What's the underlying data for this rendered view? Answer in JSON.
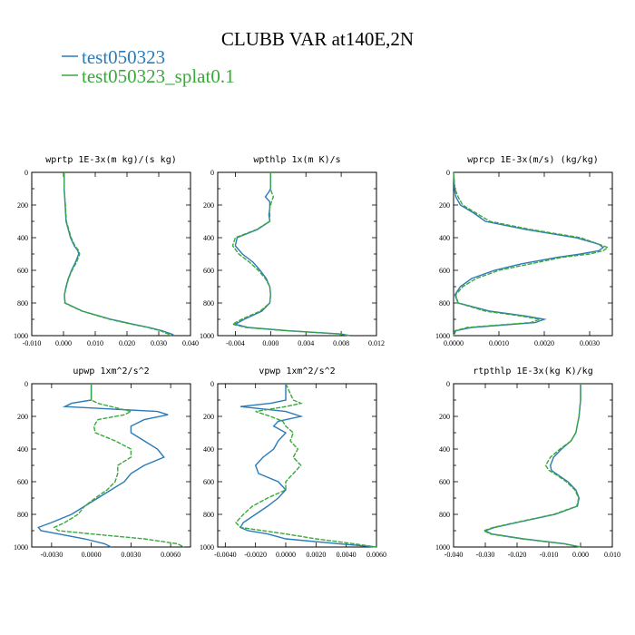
{
  "figure_title": "CLUBB VAR at140E,2N",
  "colors": {
    "series1": "#2b7bb9",
    "series2": "#3aa83a",
    "frame": "#000000"
  },
  "chart_data": [
    {
      "type": "line",
      "title": "wprtp  1E-3x(m kg)/(s kg)",
      "xlim": [
        -0.01,
        0.04
      ],
      "ylim": [
        1000,
        0
      ],
      "xticks": [
        "-0.010",
        "0.000",
        "0.010",
        "0.020",
        "0.030",
        "0.040"
      ],
      "xtick_values": [
        -0.01,
        0.0,
        0.01,
        0.02,
        0.03,
        0.04
      ],
      "yticks": [
        "0",
        "200",
        "400",
        "600",
        "800",
        "1000"
      ],
      "ytick_values": [
        0,
        200,
        400,
        600,
        800,
        1000
      ],
      "y": [
        0,
        100,
        200,
        300,
        400,
        450,
        480,
        500,
        550,
        600,
        650,
        700,
        750,
        800,
        850,
        900,
        930,
        950,
        970,
        990,
        1000
      ],
      "series": [
        {
          "name": "test050323",
          "values": [
            0.0002,
            0.0002,
            0.0005,
            0.0008,
            0.0022,
            0.0034,
            0.0045,
            0.0048,
            0.0038,
            0.0025,
            0.0015,
            0.0008,
            0.0003,
            0.0005,
            0.006,
            0.015,
            0.022,
            0.027,
            0.031,
            0.034,
            0.035
          ]
        },
        {
          "name": "test050323_splat0.1",
          "values": [
            0.0002,
            0.0002,
            0.0006,
            0.0009,
            0.0024,
            0.0036,
            0.0048,
            0.0051,
            0.0041,
            0.0027,
            0.0016,
            0.0009,
            0.0003,
            0.0004,
            0.0058,
            0.0145,
            0.0215,
            0.0265,
            0.0305,
            0.033,
            0.034
          ]
        }
      ]
    },
    {
      "type": "line",
      "title": "wpthlp  1x(m K)/s",
      "xlim": [
        -0.006,
        0.012
      ],
      "ylim": [
        1000,
        0
      ],
      "xticks": [
        "-0.004",
        "0.000",
        "0.004",
        "0.008",
        "0.012"
      ],
      "xtick_values": [
        -0.004,
        0.0,
        0.004,
        0.008,
        0.012
      ],
      "yticks": [
        "0",
        "200",
        "400",
        "600",
        "800",
        "1000"
      ],
      "ytick_values": [
        0,
        200,
        400,
        600,
        800,
        1000
      ],
      "y": [
        0,
        100,
        120,
        150,
        180,
        220,
        260,
        300,
        350,
        400,
        450,
        500,
        550,
        600,
        650,
        700,
        750,
        800,
        850,
        900,
        930,
        950,
        970,
        990,
        1000
      ],
      "series": [
        {
          "name": "test050323",
          "values": [
            0.0,
            0.0,
            -0.0002,
            -0.0006,
            -0.0001,
            -0.0001,
            -0.0002,
            -0.0001,
            -0.0015,
            -0.0038,
            -0.004,
            -0.0032,
            -0.002,
            -0.0012,
            -0.0005,
            -0.0001,
            0.0,
            -0.0001,
            -0.001,
            -0.003,
            -0.004,
            -0.0025,
            0.002,
            0.008,
            0.009
          ]
        },
        {
          "name": "test050323_splat0.1",
          "values": [
            0.0,
            0.0,
            0.0001,
            0.0003,
            0.0001,
            -0.0001,
            -0.0001,
            -0.0001,
            -0.0016,
            -0.004,
            -0.0043,
            -0.0036,
            -0.0024,
            -0.0014,
            -0.0006,
            -0.0001,
            0.0,
            -0.0001,
            -0.0012,
            -0.0033,
            -0.0043,
            -0.0028,
            0.0018,
            0.0078,
            0.009
          ]
        }
      ]
    },
    {
      "type": "line",
      "title": "wprcp  1E-3x(m/s) (kg/kg)",
      "xlim": [
        0.0,
        0.0035
      ],
      "ylim": [
        1000,
        0
      ],
      "xticks": [
        "0.0000",
        "0.0010",
        "0.0020",
        "0.0030"
      ],
      "xtick_values": [
        0.0,
        0.001,
        0.002,
        0.003
      ],
      "yticks": [
        "0",
        "200",
        "400",
        "600",
        "800",
        "1000"
      ],
      "ytick_values": [
        0,
        200,
        400,
        600,
        800,
        1000
      ],
      "y": [
        0,
        100,
        150,
        200,
        250,
        300,
        350,
        400,
        440,
        460,
        480,
        500,
        520,
        560,
        600,
        650,
        700,
        750,
        800,
        850,
        880,
        900,
        920,
        950,
        970,
        1000
      ],
      "series": [
        {
          "name": "test050323",
          "values": [
            0.0,
            2e-05,
            5e-05,
            0.00015,
            0.00045,
            0.0007,
            0.0016,
            0.0027,
            0.0032,
            0.0033,
            0.0032,
            0.0028,
            0.0023,
            0.0015,
            0.0009,
            0.0004,
            0.00015,
            3e-05,
            0.0001,
            0.0008,
            0.0016,
            0.002,
            0.0018,
            0.0004,
            5e-05,
            0.0
          ]
        },
        {
          "name": "test050323_splat0.1",
          "values": [
            0.0,
            3e-05,
            0.0001,
            0.0002,
            0.0005,
            0.0008,
            0.0017,
            0.0028,
            0.0032,
            0.0034,
            0.0033,
            0.003,
            0.0024,
            0.0017,
            0.001,
            0.0005,
            0.0002,
            5e-05,
            0.0001,
            0.0007,
            0.0015,
            0.0019,
            0.0017,
            0.0003,
            3e-05,
            0.0
          ]
        }
      ]
    },
    {
      "type": "line",
      "title": "upwp  1xm^2/s^2",
      "xlim": [
        -0.0045,
        0.0075
      ],
      "ylim": [
        1000,
        0
      ],
      "xticks": [
        "-0.0030",
        "0.0000",
        "0.0030",
        "0.0060"
      ],
      "xtick_values": [
        -0.003,
        0.0,
        0.003,
        0.006
      ],
      "yticks": [
        "0",
        "200",
        "400",
        "600",
        "800",
        "1000"
      ],
      "ytick_values": [
        0,
        200,
        400,
        600,
        800,
        1000
      ],
      "y": [
        0,
        100,
        120,
        140,
        170,
        190,
        220,
        260,
        300,
        350,
        400,
        450,
        500,
        550,
        600,
        650,
        700,
        750,
        800,
        850,
        880,
        900,
        920,
        950,
        980,
        1000
      ],
      "series": [
        {
          "name": "test050323",
          "values": [
            0.0,
            0.0,
            -0.0015,
            -0.002,
            0.005,
            0.0058,
            0.004,
            0.003,
            0.003,
            0.004,
            0.005,
            0.0055,
            0.004,
            0.003,
            0.0025,
            0.0015,
            0.0005,
            -0.0005,
            -0.0015,
            -0.003,
            -0.004,
            -0.0038,
            -0.0025,
            -0.0005,
            0.001,
            0.0015
          ]
        },
        {
          "name": "test050323_splat0.1",
          "values": [
            0.0,
            0.0,
            0.0005,
            0.0015,
            0.003,
            0.0025,
            0.0005,
            0.0002,
            0.0003,
            0.0018,
            0.003,
            0.003,
            0.002,
            0.002,
            0.0018,
            0.0012,
            0.0003,
            -0.0005,
            -0.001,
            -0.002,
            -0.0028,
            -0.0025,
            0.0,
            0.004,
            0.0065,
            0.007
          ]
        }
      ]
    },
    {
      "type": "line",
      "title": "vpwp  1xm^2/s^2",
      "xlim": [
        -0.0045,
        0.006
      ],
      "ylim": [
        1000,
        0
      ],
      "xticks": [
        "-0.0040",
        "-0.0020",
        "0.0000",
        "0.0020",
        "0.0040",
        "0.0060"
      ],
      "xtick_values": [
        -0.004,
        -0.002,
        0.0,
        0.002,
        0.004,
        0.006
      ],
      "yticks": [
        "0",
        "200",
        "400",
        "600",
        "800",
        "1000"
      ],
      "ytick_values": [
        0,
        200,
        400,
        600,
        800,
        1000
      ],
      "y": [
        0,
        100,
        120,
        140,
        170,
        200,
        230,
        260,
        300,
        350,
        400,
        450,
        500,
        550,
        600,
        650,
        700,
        750,
        800,
        850,
        880,
        900,
        920,
        950,
        980,
        1000
      ],
      "series": [
        {
          "name": "test050323",
          "values": [
            0.0,
            0.0,
            -0.001,
            -0.003,
            0.0,
            0.001,
            -0.0005,
            -0.0008,
            0.0,
            -0.0005,
            -0.0008,
            -0.0015,
            -0.002,
            -0.0018,
            -0.0005,
            0.0,
            -0.0005,
            -0.0012,
            -0.002,
            -0.0028,
            -0.003,
            -0.0025,
            -0.0012,
            0.0,
            0.0035,
            0.006
          ]
        },
        {
          "name": "test050323_splat0.1",
          "values": [
            0.0,
            0.0005,
            0.001,
            0.0,
            -0.002,
            -0.001,
            -0.0002,
            0.0,
            0.0005,
            0.0003,
            0.0008,
            0.0005,
            0.001,
            0.0005,
            0.0,
            0.0,
            -0.0012,
            -0.0022,
            -0.0028,
            -0.0033,
            -0.003,
            -0.0015,
            0.0,
            0.002,
            0.0045,
            0.006
          ]
        }
      ]
    },
    {
      "type": "line",
      "title": "rtpthlp  1E-3x(kg K)/kg",
      "xlim": [
        -0.04,
        0.01
      ],
      "ylim": [
        1000,
        0
      ],
      "xticks": [
        "-0.040",
        "-0.030",
        "-0.020",
        "-0.010",
        "0.000",
        "0.010"
      ],
      "xtick_values": [
        -0.04,
        -0.03,
        -0.02,
        -0.01,
        0.0,
        0.01
      ],
      "yticks": [
        "0",
        "200",
        "400",
        "600",
        "800",
        "1000"
      ],
      "ytick_values": [
        0,
        200,
        400,
        600,
        800,
        1000
      ],
      "y": [
        0,
        100,
        200,
        300,
        350,
        400,
        450,
        500,
        530,
        560,
        600,
        650,
        700,
        750,
        800,
        850,
        880,
        900,
        920,
        950,
        980,
        1000
      ],
      "series": [
        {
          "name": "test050323",
          "values": [
            0.0,
            0.0,
            -0.0005,
            -0.0015,
            -0.003,
            -0.006,
            -0.0085,
            -0.0095,
            -0.0092,
            -0.007,
            -0.004,
            -0.0015,
            -0.0005,
            -0.001,
            -0.008,
            -0.02,
            -0.027,
            -0.03,
            -0.028,
            -0.018,
            -0.005,
            0.0
          ]
        },
        {
          "name": "test050323_splat0.1",
          "values": [
            0.0,
            0.0,
            -0.0005,
            -0.0015,
            -0.003,
            -0.0065,
            -0.0095,
            -0.011,
            -0.01,
            -0.0075,
            -0.0045,
            -0.0018,
            -0.0006,
            -0.0012,
            -0.0085,
            -0.0205,
            -0.0275,
            -0.0305,
            -0.0285,
            -0.0185,
            -0.0055,
            0.0
          ]
        }
      ]
    }
  ]
}
